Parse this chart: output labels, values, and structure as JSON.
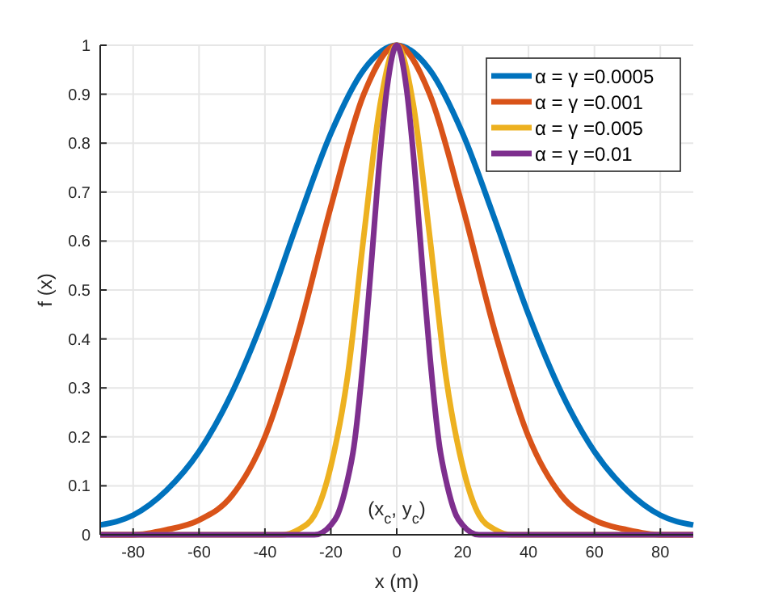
{
  "chart_data": {
    "type": "line",
    "xlabel": "x (m)",
    "ylabel": "f (x)",
    "xlim": [
      -90,
      90
    ],
    "xticks": [
      -80,
      -60,
      -40,
      -20,
      0,
      20,
      40,
      60,
      80
    ],
    "ylim": [
      0,
      1
    ],
    "yticks": [
      0,
      0.1,
      0.2,
      0.3,
      0.4,
      0.5,
      0.6,
      0.7,
      0.8,
      0.9,
      1
    ],
    "grid": true,
    "legend": "top right",
    "line_style": "solid",
    "marker": "none",
    "annotations": [
      "(x$_{c}$, y$_{c}$)"
    ],
    "series": [
      {
        "name": "α = γ =0.0005",
        "color": "#0072bd",
        "x": [
          -90,
          -80,
          -70,
          -60,
          -50,
          -40,
          -30,
          -20,
          -10,
          0,
          10,
          20,
          30,
          40,
          50,
          60,
          70,
          80,
          90
        ],
        "values": [
          0.02,
          0.04,
          0.09,
          0.17,
          0.29,
          0.45,
          0.64,
          0.82,
          0.95,
          1,
          0.95,
          0.82,
          0.64,
          0.45,
          0.29,
          0.17,
          0.09,
          0.04,
          0.02
        ]
      },
      {
        "name": "α = γ =0.001",
        "color": "#d95319",
        "x": [
          -90,
          -80,
          -70,
          -60,
          -50,
          -40,
          -30,
          -20,
          -10,
          0,
          10,
          20,
          30,
          40,
          50,
          60,
          70,
          80,
          90
        ],
        "values": [
          0,
          0,
          0.01,
          0.03,
          0.08,
          0.2,
          0.41,
          0.67,
          0.9,
          1,
          0.9,
          0.67,
          0.41,
          0.2,
          0.08,
          0.03,
          0.01,
          0,
          0
        ]
      },
      {
        "name": "α = γ =0.005",
        "color": "#edb120",
        "x": [
          -90,
          -35,
          -30,
          -25,
          -20,
          -15,
          -10,
          -5,
          0,
          5,
          10,
          15,
          20,
          25,
          30,
          35,
          90
        ],
        "values": [
          0,
          0,
          0.01,
          0.04,
          0.14,
          0.32,
          0.61,
          0.88,
          1,
          0.88,
          0.61,
          0.32,
          0.14,
          0.04,
          0.01,
          0,
          0
        ]
      },
      {
        "name": "α = γ =0.01",
        "color": "#7e2f8e",
        "x": [
          -90,
          -25,
          -20,
          -18,
          -15,
          -13,
          -10,
          -8,
          -5,
          -3,
          0,
          3,
          5,
          8,
          10,
          13,
          15,
          18,
          20,
          25,
          90
        ],
        "values": [
          0,
          0,
          0.02,
          0.04,
          0.11,
          0.18,
          0.37,
          0.53,
          0.78,
          0.91,
          1,
          0.91,
          0.78,
          0.53,
          0.37,
          0.18,
          0.11,
          0.04,
          0.02,
          0,
          0
        ]
      }
    ]
  }
}
